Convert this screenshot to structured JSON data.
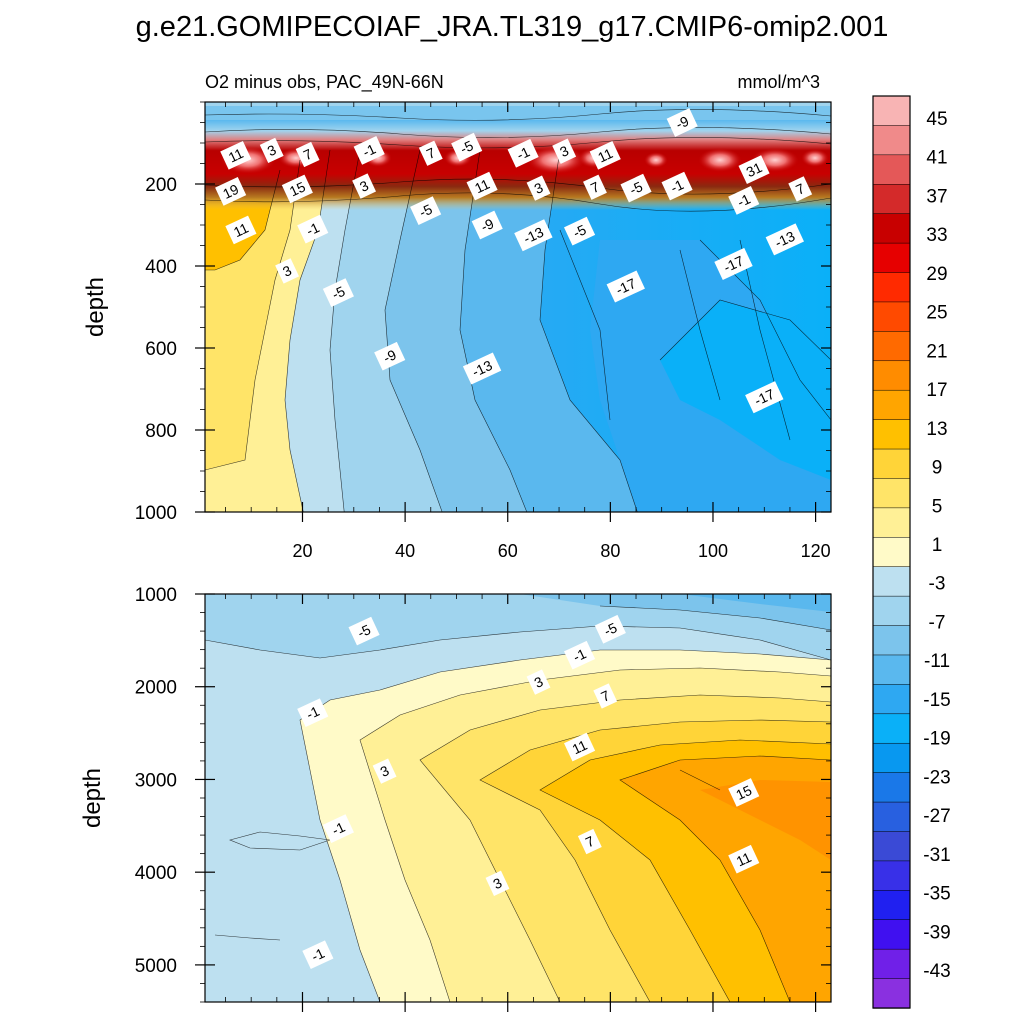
{
  "chart_data": {
    "type": "heatmap",
    "title": "g.e21.GOMIPECOIAF_JRA.TL319_g17.CMIP6-omip2.001",
    "subtitle": "O2 minus obs, PAC_49N-66N",
    "units": "mmol/m^3",
    "colorbar": {
      "levels": [
        45,
        41,
        37,
        33,
        29,
        25,
        21,
        17,
        13,
        9,
        5,
        1,
        -3,
        -7,
        -11,
        -15,
        -19,
        -23,
        -27,
        -31,
        -35,
        -39,
        -43
      ],
      "colors": [
        "#f8b4b4",
        "#f08a8a",
        "#e45858",
        "#d42a2a",
        "#c80000",
        "#e60000",
        "#ff2a00",
        "#ff4a00",
        "#ff6a00",
        "#ff8c00",
        "#ffa500",
        "#ffc000",
        "#ffd438",
        "#ffe468",
        "#fff096",
        "#fffac8",
        "#bde0f0",
        "#a0d4ee",
        "#7cc4ec",
        "#5ab8ee",
        "#2ea8f2",
        "#0ab0f8",
        "#0898f0",
        "#1a78e8",
        "#2860e0",
        "#3a4ad6",
        "#3830e8",
        "#2020f0",
        "#4010f0",
        "#7020e8",
        "#8a30e0"
      ]
    },
    "panels": [
      {
        "name": "upper",
        "xlim": [
          1,
          123
        ],
        "ylim": [
          1000,
          0
        ],
        "xticks": [
          20,
          40,
          60,
          80,
          100,
          120
        ],
        "yticks": [
          200,
          400,
          600,
          800,
          1000
        ],
        "ylabel": "depth",
        "contour_labels": [
          {
            "text": "-9",
            "x": 94,
            "y": 50
          },
          {
            "text": "11",
            "x": 7,
            "y": 130
          },
          {
            "text": "3",
            "x": 14,
            "y": 118
          },
          {
            "text": "7",
            "x": 21,
            "y": 128
          },
          {
            "text": "-1",
            "x": 33,
            "y": 118
          },
          {
            "text": "7",
            "x": 45,
            "y": 125
          },
          {
            "text": "-5",
            "x": 52,
            "y": 110
          },
          {
            "text": "-1",
            "x": 63,
            "y": 125
          },
          {
            "text": "3",
            "x": 71,
            "y": 120
          },
          {
            "text": "11",
            "x": 79,
            "y": 130
          },
          {
            "text": "19",
            "x": 6,
            "y": 218
          },
          {
            "text": "15",
            "x": 19,
            "y": 212
          },
          {
            "text": "3",
            "x": 32,
            "y": 205
          },
          {
            "text": "11",
            "x": 55,
            "y": 205
          },
          {
            "text": "3",
            "x": 66,
            "y": 210
          },
          {
            "text": "7",
            "x": 77,
            "y": 208
          },
          {
            "text": "-5",
            "x": 85,
            "y": 210
          },
          {
            "text": "-1",
            "x": 93,
            "y": 205
          },
          {
            "text": "31",
            "x": 108,
            "y": 165
          },
          {
            "text": "7",
            "x": 117,
            "y": 212
          },
          {
            "text": "-5",
            "x": 44,
            "y": 265
          },
          {
            "text": "-9",
            "x": 56,
            "y": 300
          },
          {
            "text": "-13",
            "x": 65,
            "y": 325
          },
          {
            "text": "-5",
            "x": 74,
            "y": 315
          },
          {
            "text": "-1",
            "x": 106,
            "y": 240
          },
          {
            "text": "11",
            "x": 8,
            "y": 312
          },
          {
            "text": "-1",
            "x": 22,
            "y": 310
          },
          {
            "text": "-13",
            "x": 114,
            "y": 335
          },
          {
            "text": "-17",
            "x": 104,
            "y": 395
          },
          {
            "text": "3",
            "x": 17,
            "y": 412
          },
          {
            "text": "-5",
            "x": 27,
            "y": 465
          },
          {
            "text": "-17",
            "x": 83,
            "y": 450
          },
          {
            "text": "-9",
            "x": 37,
            "y": 620
          },
          {
            "text": "-13",
            "x": 55,
            "y": 650
          },
          {
            "text": "-17",
            "x": 110,
            "y": 720
          }
        ]
      },
      {
        "name": "lower",
        "xlim": [
          1,
          123
        ],
        "ylim": [
          5400,
          1000
        ],
        "xticks": [
          20,
          40,
          60,
          80,
          100,
          120
        ],
        "yticks": [
          1000,
          2000,
          3000,
          4000,
          5000
        ],
        "ylabel": "depth",
        "contour_labels": [
          {
            "text": "-5",
            "x": 32,
            "y": 1400
          },
          {
            "text": "-5",
            "x": 80,
            "y": 1380
          },
          {
            "text": "-1",
            "x": 74,
            "y": 1660
          },
          {
            "text": "3",
            "x": 66,
            "y": 1950
          },
          {
            "text": "7",
            "x": 79,
            "y": 2100
          },
          {
            "text": "-1",
            "x": 22,
            "y": 2280
          },
          {
            "text": "11",
            "x": 74,
            "y": 2650
          },
          {
            "text": "3",
            "x": 36,
            "y": 2910
          },
          {
            "text": "15",
            "x": 106,
            "y": 3140
          },
          {
            "text": "-1",
            "x": 27,
            "y": 3530
          },
          {
            "text": "7",
            "x": 76,
            "y": 3670
          },
          {
            "text": "11",
            "x": 106,
            "y": 3860
          },
          {
            "text": "3",
            "x": 58,
            "y": 4120
          },
          {
            "text": "-1",
            "x": 23,
            "y": 4890
          }
        ]
      }
    ]
  }
}
